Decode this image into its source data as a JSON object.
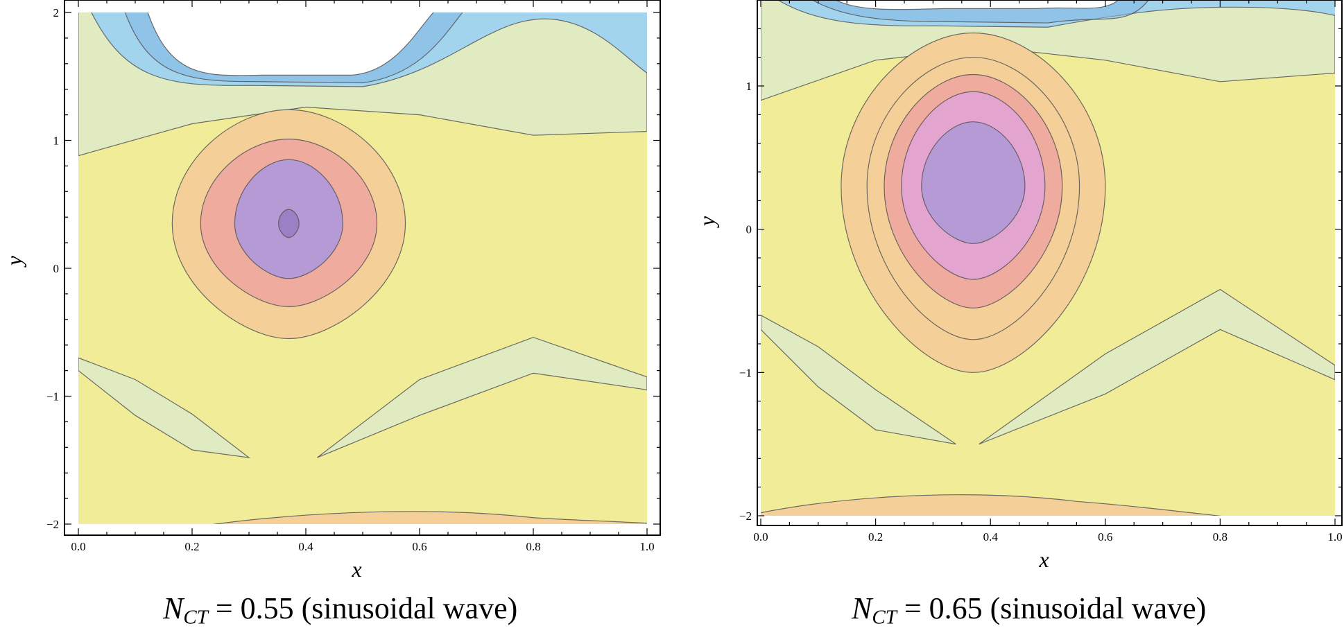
{
  "colors": {
    "white_band": "#ffffff",
    "blue": "#a3d4ee",
    "blue_dark": "#7fb6e4",
    "green": "#e1ebc2",
    "yellow": "#f0ec98",
    "orange": "#f5cf98",
    "salmon": "#eeab9e",
    "pink": "#e3a4cf",
    "violet": "#b69ad6",
    "violet_dark": "#9c80c5",
    "contour_line": "#555555"
  },
  "chart_data": [
    {
      "type": "contour",
      "caption": {
        "symbol": "N",
        "subscript": "CT",
        "value": " = 0.55 (sinusoidal wave)"
      },
      "xlabel": "x",
      "ylabel": "y",
      "xlim": [
        0,
        1
      ],
      "ylim": [
        -2,
        2
      ],
      "xticks": [
        0.0,
        0.2,
        0.4,
        0.6,
        0.8,
        1.0
      ],
      "xtick_labels": [
        "0.0",
        "0.2",
        "0.4",
        "0.6",
        "0.8",
        "1.0"
      ],
      "yticks": [
        -2,
        -1,
        0,
        1,
        2
      ],
      "ytick_labels": [
        "−2",
        "−1",
        "0",
        "1",
        "2"
      ],
      "bolus_center": [
        0.37,
        0.35
      ],
      "bolus_levels": [
        {
          "rx": 0.205,
          "ry_top": 0.89,
          "ry_bot": 0.9,
          "color": "orange"
        },
        {
          "rx": 0.155,
          "ry_top": 0.66,
          "ry_bot": 0.65,
          "color": "salmon"
        },
        {
          "rx": 0.095,
          "ry_top": 0.5,
          "ry_bot": 0.43,
          "color": "violet"
        },
        {
          "rx": 0.018,
          "ry_top": 0.11,
          "ry_bot": 0.11,
          "color": "violet_dark"
        }
      ],
      "upper_white_bottom": 1.44,
      "upper_blue_bottom": 1.43,
      "green_upper_boundary": [
        [
          0.0,
          0.88
        ],
        [
          0.2,
          1.13
        ],
        [
          0.4,
          1.26
        ],
        [
          0.6,
          1.2
        ],
        [
          0.8,
          1.04
        ],
        [
          1.0,
          1.07
        ]
      ],
      "lower_green_lobe_left": [
        [
          0.0,
          -0.7
        ],
        [
          0.1,
          -1.05
        ],
        [
          0.2,
          -1.32
        ],
        [
          0.3,
          -1.48
        ]
      ],
      "lower_green_lobe_right": [
        [
          0.42,
          -1.48
        ],
        [
          0.6,
          -1.05
        ],
        [
          0.8,
          -0.72
        ],
        [
          1.0,
          -0.85
        ]
      ],
      "bottom_orange_peak": [
        0.55,
        -1.9
      ]
    },
    {
      "type": "contour",
      "caption": {
        "symbol": "N",
        "subscript": "CT",
        "value": " = 0.65 (sinusoidal wave)"
      },
      "xlabel": "x",
      "ylabel": "y",
      "xlim": [
        0,
        1
      ],
      "ylim": [
        -2,
        1.6
      ],
      "xticks": [
        0.0,
        0.2,
        0.4,
        0.6,
        0.8,
        1.0
      ],
      "xtick_labels": [
        "0.0",
        "0.2",
        "0.4",
        "0.6",
        "0.8",
        "1.0"
      ],
      "yticks": [
        -2,
        -1,
        0,
        1
      ],
      "ytick_labels": [
        "−2",
        "−1",
        "0",
        "1"
      ],
      "bolus_center": [
        0.37,
        0.3
      ],
      "bolus_levels": [
        {
          "rx": 0.23,
          "ry_top": 1.07,
          "ry_bot": 1.3,
          "color": "orange"
        },
        {
          "rx": 0.185,
          "ry_top": 0.9,
          "ry_bot": 1.07,
          "color": "orange"
        },
        {
          "rx": 0.155,
          "ry_top": 0.78,
          "ry_bot": 0.85,
          "color": "salmon"
        },
        {
          "rx": 0.125,
          "ry_top": 0.66,
          "ry_bot": 0.65,
          "color": "pink"
        },
        {
          "rx": 0.09,
          "ry_top": 0.45,
          "ry_bot": 0.4,
          "color": "violet"
        }
      ],
      "upper_white_bottom": 1.47,
      "upper_blue_bottom": 1.42,
      "green_upper_boundary": [
        [
          0.0,
          0.9
        ],
        [
          0.2,
          1.18
        ],
        [
          0.4,
          1.27
        ],
        [
          0.6,
          1.18
        ],
        [
          0.8,
          1.03
        ],
        [
          1.0,
          1.09
        ]
      ],
      "lower_green_lobe_left": [
        [
          0.0,
          -0.6
        ],
        [
          0.1,
          -1.0
        ],
        [
          0.2,
          -1.3
        ],
        [
          0.34,
          -1.5
        ]
      ],
      "lower_green_lobe_right": [
        [
          0.38,
          -1.5
        ],
        [
          0.6,
          -1.05
        ],
        [
          0.8,
          -0.6
        ],
        [
          1.0,
          -0.95
        ]
      ],
      "bottom_orange_peak": [
        0.3,
        -1.85
      ]
    }
  ]
}
